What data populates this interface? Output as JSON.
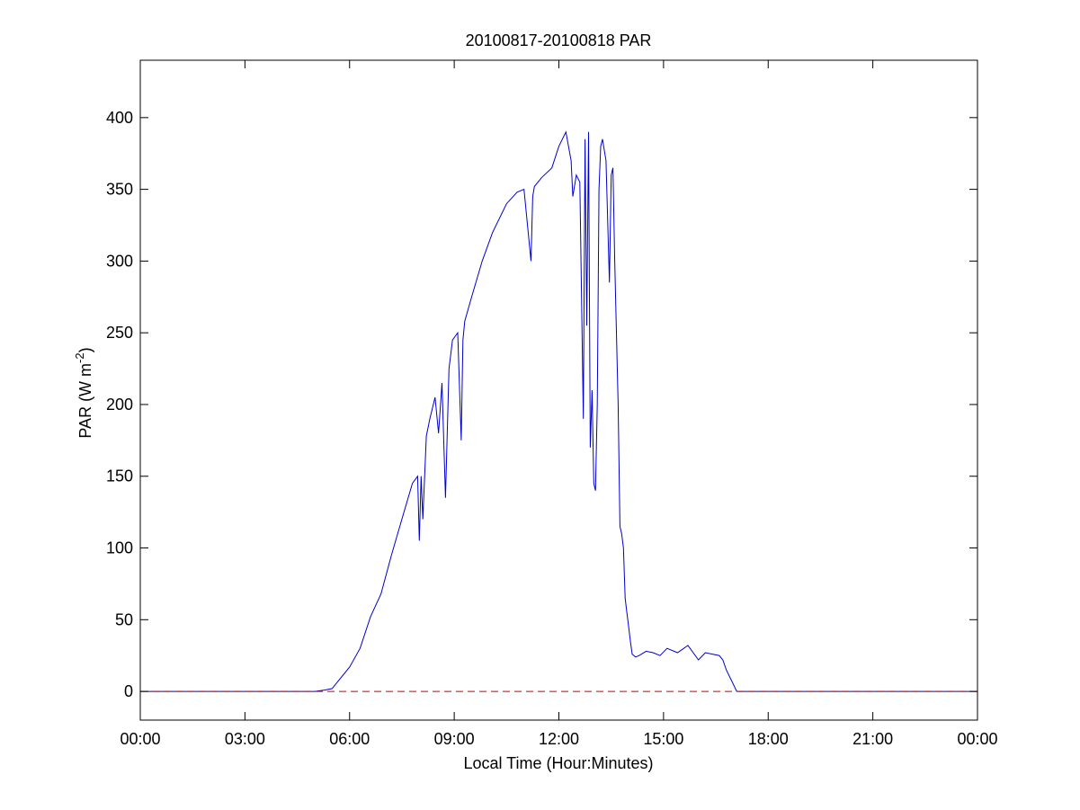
{
  "chart_data": {
    "type": "line",
    "title": "20100817-20100818 PAR",
    "xlabel": "Local Time (Hour:Minutes)",
    "ylabel": "PAR (W m",
    "ylabel_superscript": "-2",
    "ylabel_suffix": ")",
    "xlim": [
      0,
      24
    ],
    "ylim": [
      -20,
      440
    ],
    "x_ticks": [
      0,
      3,
      6,
      9,
      12,
      15,
      18,
      21,
      24
    ],
    "x_tick_labels": [
      "00:00",
      "03:00",
      "06:00",
      "09:00",
      "12:00",
      "15:00",
      "18:00",
      "21:00",
      "00:00"
    ],
    "y_ticks": [
      0,
      50,
      100,
      150,
      200,
      250,
      300,
      350,
      400
    ],
    "y_tick_labels": [
      "0",
      "50",
      "100",
      "150",
      "200",
      "250",
      "300",
      "350",
      "400"
    ],
    "grid": false,
    "series": [
      {
        "color": "#0000cc",
        "style": "solid",
        "x": [
          0,
          1,
          2,
          3,
          4,
          5,
          5.3,
          5.5,
          5.7,
          6.0,
          6.3,
          6.6,
          6.9,
          7.2,
          7.5,
          7.8,
          7.95,
          8.0,
          8.05,
          8.1,
          8.2,
          8.3,
          8.45,
          8.55,
          8.65,
          8.75,
          8.85,
          8.95,
          9.1,
          9.2,
          9.25,
          9.3,
          9.5,
          9.8,
          10.1,
          10.5,
          10.8,
          11.0,
          11.2,
          11.25,
          11.3,
          11.5,
          11.8,
          12.0,
          12.2,
          12.35,
          12.4,
          12.5,
          12.6,
          12.7,
          12.75,
          12.8,
          12.85,
          12.9,
          12.95,
          13.0,
          13.05,
          13.1,
          13.15,
          13.2,
          13.25,
          13.35,
          13.45,
          13.5,
          13.55,
          13.6,
          13.7,
          13.75,
          13.8,
          13.85,
          13.9,
          13.95,
          14.0,
          14.05,
          14.1,
          14.2,
          14.3,
          14.5,
          14.7,
          14.9,
          15.1,
          15.4,
          15.7,
          16.0,
          16.2,
          16.4,
          16.6,
          16.7,
          16.8,
          17.0,
          17.1,
          17.3,
          17.5,
          17.8,
          18.0,
          18.3,
          18.6,
          18.8,
          19.0,
          20,
          21,
          22,
          23,
          24
        ],
        "y": [
          0,
          0,
          0,
          0,
          0,
          0,
          1,
          2,
          8,
          17,
          30,
          52,
          68,
          95,
          120,
          145,
          150,
          105,
          150,
          120,
          178,
          190,
          205,
          180,
          215,
          135,
          225,
          245,
          250,
          175,
          245,
          258,
          275,
          300,
          320,
          340,
          348,
          350,
          300,
          345,
          352,
          358,
          365,
          380,
          390,
          370,
          345,
          360,
          355,
          190,
          385,
          255,
          390,
          170,
          210,
          145,
          140,
          200,
          350,
          380,
          385,
          370,
          285,
          360,
          365,
          300,
          200,
          115,
          110,
          100,
          65,
          55,
          45,
          35,
          26,
          24,
          25,
          28,
          27,
          25,
          30,
          27,
          32,
          22,
          27,
          26,
          25,
          22,
          15,
          5,
          0,
          0,
          0,
          0,
          0,
          0,
          0,
          0,
          0,
          0,
          0,
          0,
          0,
          0
        ]
      },
      {
        "color": "#cc0000",
        "style": "dashed",
        "x": [
          0,
          24
        ],
        "y": [
          0,
          0
        ]
      }
    ]
  }
}
